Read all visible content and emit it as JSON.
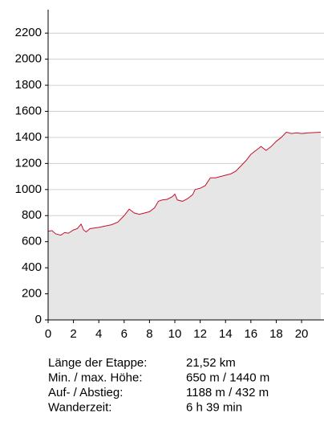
{
  "chart_data": {
    "type": "area",
    "x": [
      0,
      0.3,
      0.6,
      1,
      1.3,
      1.6,
      2,
      2.3,
      2.6,
      2.8,
      3,
      3.3,
      4,
      4.5,
      5,
      5.5,
      6,
      6.4,
      6.8,
      7.2,
      7.6,
      8,
      8.4,
      8.7,
      9,
      9.4,
      9.8,
      10,
      10.2,
      10.6,
      11,
      11.4,
      11.6,
      12,
      12.4,
      12.8,
      13.2,
      13.6,
      14,
      14.4,
      14.8,
      15.2,
      15.6,
      16,
      16.4,
      16.8,
      17.2,
      17.6,
      18,
      18.4,
      18.8,
      19.2,
      19.6,
      20,
      20.6,
      21.52
    ],
    "values": [
      680,
      685,
      660,
      650,
      670,
      665,
      690,
      700,
      735,
      690,
      675,
      700,
      710,
      720,
      730,
      750,
      800,
      850,
      820,
      810,
      820,
      830,
      860,
      910,
      920,
      925,
      945,
      965,
      920,
      910,
      930,
      960,
      1000,
      1010,
      1030,
      1090,
      1090,
      1100,
      1110,
      1120,
      1140,
      1180,
      1220,
      1270,
      1300,
      1330,
      1300,
      1330,
      1370,
      1400,
      1440,
      1430,
      1435,
      1430,
      1435,
      1440
    ],
    "color": "#c8102e",
    "fill": "#e6e6e6",
    "xlim": [
      0,
      21.77
    ],
    "xticks": [
      0,
      2,
      4,
      6,
      8,
      10,
      12,
      14,
      16,
      18,
      20
    ],
    "ylim": [
      0,
      2380
    ],
    "yticks": [
      0,
      200,
      400,
      600,
      800,
      1000,
      1200,
      1400,
      1600,
      1800,
      2000,
      2200
    ],
    "grid": true
  },
  "stats": [
    [
      "Länge der Etappe:",
      "21,52 km"
    ],
    [
      "Min. / max. Höhe:",
      "650 m / 1440 m"
    ],
    [
      "Auf- / Abstieg:",
      "1188 m / 432 m"
    ],
    [
      "Wanderzeit:",
      "6 h 39 min"
    ]
  ]
}
